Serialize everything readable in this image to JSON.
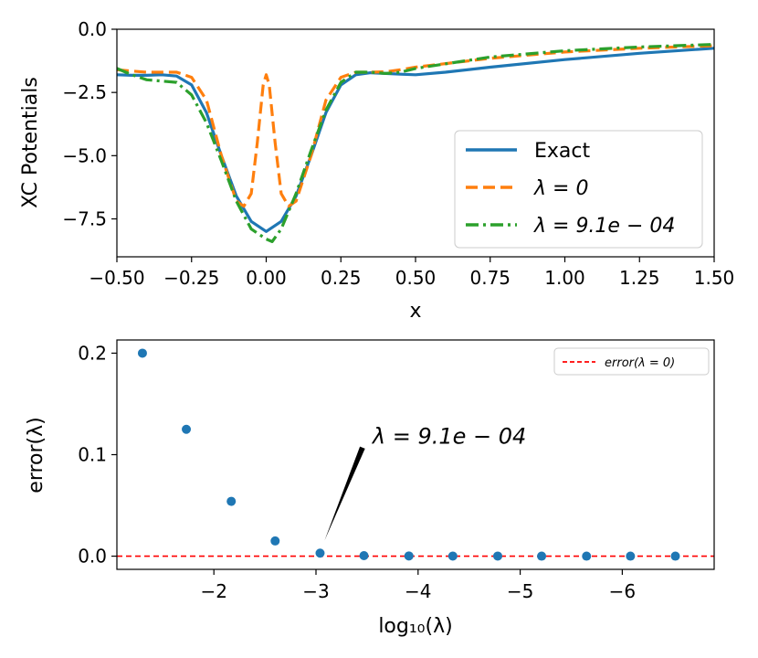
{
  "chart_data": [
    {
      "type": "line",
      "xlabel": "x",
      "ylabel": "XC Potentials",
      "xlim": [
        -0.5,
        1.5
      ],
      "ylim": [
        -9.0,
        0.0
      ],
      "xticks": [
        -0.5,
        -0.25,
        0.0,
        0.25,
        0.5,
        0.75,
        1.0,
        1.25,
        1.5
      ],
      "xtick_labels": [
        "−0.50",
        "−0.25",
        "0.00",
        "0.25",
        "0.50",
        "0.75",
        "1.00",
        "1.25",
        "1.50"
      ],
      "yticks": [
        0.0,
        -2.5,
        -5.0,
        -7.5
      ],
      "ytick_labels": [
        "0.0",
        "−2.5",
        "−5.0",
        "−7.5"
      ],
      "legend_position": "lower-right",
      "series": [
        {
          "name": "Exact",
          "color": "#1f77b4",
          "style": "solid",
          "x": [
            -0.5,
            -0.45,
            -0.4,
            -0.35,
            -0.3,
            -0.25,
            -0.2,
            -0.15,
            -0.1,
            -0.05,
            0.0,
            0.05,
            0.1,
            0.15,
            0.2,
            0.25,
            0.3,
            0.35,
            0.4,
            0.45,
            0.5,
            0.6,
            0.75,
            1.0,
            1.25,
            1.5
          ],
          "y": [
            -1.8,
            -1.82,
            -1.82,
            -1.8,
            -1.85,
            -2.2,
            -3.3,
            -5.0,
            -6.6,
            -7.6,
            -8.0,
            -7.6,
            -6.6,
            -5.0,
            -3.3,
            -2.2,
            -1.8,
            -1.72,
            -1.75,
            -1.78,
            -1.8,
            -1.7,
            -1.5,
            -1.2,
            -0.95,
            -0.75
          ]
        },
        {
          "name": "λ = 0",
          "color": "#ff7f0e",
          "style": "dashed",
          "x": [
            -0.5,
            -0.45,
            -0.4,
            -0.35,
            -0.3,
            -0.25,
            -0.2,
            -0.15,
            -0.1,
            -0.075,
            -0.05,
            -0.03,
            -0.01,
            0.0,
            0.01,
            0.03,
            0.05,
            0.075,
            0.1,
            0.15,
            0.2,
            0.25,
            0.3,
            0.35,
            0.4,
            0.45,
            0.5,
            0.75,
            1.0,
            1.25,
            1.5
          ],
          "y": [
            -1.6,
            -1.65,
            -1.7,
            -1.7,
            -1.7,
            -1.9,
            -2.8,
            -5.0,
            -6.8,
            -7.0,
            -6.5,
            -4.5,
            -2.2,
            -1.8,
            -2.2,
            -4.5,
            -6.5,
            -7.0,
            -6.8,
            -5.0,
            -2.8,
            -1.9,
            -1.7,
            -1.7,
            -1.68,
            -1.6,
            -1.5,
            -1.15,
            -0.9,
            -0.75,
            -0.65
          ]
        },
        {
          "name": "λ = 9.1e − 04",
          "color": "#2ca02c",
          "style": "dashdot",
          "x": [
            -0.5,
            -0.45,
            -0.4,
            -0.35,
            -0.3,
            -0.25,
            -0.2,
            -0.15,
            -0.1,
            -0.05,
            0.0,
            0.02,
            0.05,
            0.1,
            0.15,
            0.2,
            0.25,
            0.3,
            0.35,
            0.4,
            0.45,
            0.5,
            0.75,
            1.0,
            1.25,
            1.5
          ],
          "y": [
            -1.55,
            -1.8,
            -2.0,
            -2.05,
            -2.1,
            -2.6,
            -3.7,
            -5.2,
            -6.8,
            -7.9,
            -8.3,
            -8.4,
            -7.9,
            -6.5,
            -4.8,
            -3.2,
            -2.1,
            -1.7,
            -1.7,
            -1.75,
            -1.7,
            -1.55,
            -1.1,
            -0.85,
            -0.7,
            -0.6
          ]
        }
      ]
    },
    {
      "type": "scatter",
      "xlabel": "log₁₀(λ)",
      "ylabel": "error(λ)",
      "xlim": [
        -1.05,
        -6.9
      ],
      "ylim": [
        -0.013,
        0.213
      ],
      "xticks": [
        -2,
        -3,
        -4,
        -5,
        -6
      ],
      "xtick_labels": [
        "−2",
        "−3",
        "−4",
        "−5",
        "−6"
      ],
      "yticks": [
        0.0,
        0.1,
        0.2
      ],
      "ytick_labels": [
        "0.0",
        "0.1",
        "0.2"
      ],
      "legend_position": "top-right",
      "points": {
        "color": "#1f77b4",
        "x": [
          -1.3,
          -1.73,
          -2.17,
          -2.6,
          -3.04,
          -3.47,
          -3.91,
          -4.34,
          -4.78,
          -5.21,
          -5.65,
          -6.08,
          -6.52
        ],
        "y": [
          0.2,
          0.125,
          0.054,
          0.015,
          0.003,
          0.0005,
          0.0002,
          0.0001,
          0.0001,
          0.0,
          0.0,
          0.0,
          0.0
        ]
      },
      "reference_line": {
        "label": "error(λ = 0)",
        "color": "#ff0000",
        "style": "dashed",
        "y": 0.0
      },
      "annotation": {
        "text": "λ = 9.1e − 04",
        "x": -3.04,
        "y": 0.003,
        "text_x": -3.5,
        "text_y": 0.107
      }
    }
  ]
}
